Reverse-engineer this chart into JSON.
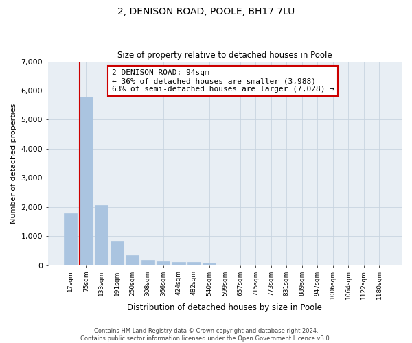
{
  "title": "2, DENISON ROAD, POOLE, BH17 7LU",
  "subtitle": "Size of property relative to detached houses in Poole",
  "xlabel": "Distribution of detached houses by size in Poole",
  "ylabel": "Number of detached properties",
  "bar_labels": [
    "17sqm",
    "75sqm",
    "133sqm",
    "191sqm",
    "250sqm",
    "308sqm",
    "366sqm",
    "424sqm",
    "482sqm",
    "540sqm",
    "599sqm",
    "657sqm",
    "715sqm",
    "773sqm",
    "831sqm",
    "889sqm",
    "947sqm",
    "1006sqm",
    "1064sqm",
    "1122sqm",
    "1180sqm"
  ],
  "bar_values": [
    1780,
    5780,
    2060,
    820,
    340,
    190,
    130,
    110,
    100,
    75,
    0,
    0,
    0,
    0,
    0,
    0,
    0,
    0,
    0,
    0,
    0
  ],
  "bar_color": "#aac4e0",
  "highlight_line_index": 1,
  "highlight_color": "#cc0000",
  "annotation_text": "2 DENISON ROAD: 94sqm\n← 36% of detached houses are smaller (3,988)\n63% of semi-detached houses are larger (7,028) →",
  "annotation_box_color": "#ffffff",
  "annotation_box_edge_color": "#cc0000",
  "ylim": [
    0,
    7000
  ],
  "yticks": [
    0,
    1000,
    2000,
    3000,
    4000,
    5000,
    6000,
    7000
  ],
  "grid_color": "#c8d4e0",
  "bg_color": "#e8eef4",
  "footer_line1": "Contains HM Land Registry data © Crown copyright and database right 2024.",
  "footer_line2": "Contains public sector information licensed under the Open Government Licence v3.0."
}
